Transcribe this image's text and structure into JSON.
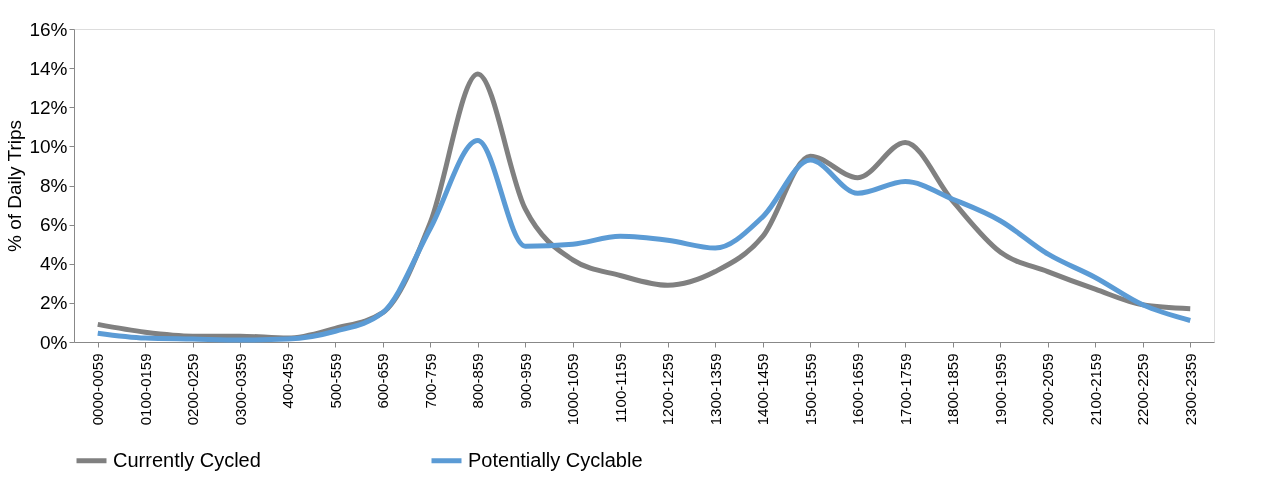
{
  "chart_data": {
    "type": "line",
    "ylabel": "% of Daily Trips",
    "categories": [
      "0000-0059",
      "0100-0159",
      "0200-0259",
      "0300-0359",
      "400-459",
      "500-559",
      "600-659",
      "700-759",
      "800-859",
      "900-959",
      "1000-1059",
      "1100-1159",
      "1200-1259",
      "1300-1359",
      "1400-1459",
      "1500-1559",
      "1600-1659",
      "1700-1759",
      "1800-1859",
      "1900-1959",
      "2000-2059",
      "2100-2159",
      "2200-2259",
      "2300-2359"
    ],
    "series": [
      {
        "name": "Currently Cycled",
        "color": "#808080",
        "values": [
          0.9,
          0.5,
          0.3,
          0.3,
          0.2,
          0.7,
          1.5,
          6.1,
          13.7,
          6.8,
          4.2,
          3.4,
          2.9,
          3.6,
          5.4,
          9.5,
          8.4,
          10.2,
          7.2,
          4.6,
          3.6,
          2.7,
          1.9,
          1.7
        ]
      },
      {
        "name": "Potentially Cyclable",
        "color": "#5b9bd5",
        "values": [
          0.45,
          0.2,
          0.15,
          0.1,
          0.15,
          0.55,
          1.5,
          5.8,
          10.3,
          4.9,
          5.0,
          5.4,
          5.2,
          4.8,
          6.4,
          9.3,
          7.6,
          8.2,
          7.3,
          6.2,
          4.5,
          3.3,
          1.9,
          1.1
        ]
      }
    ],
    "ylim": [
      0,
      16
    ],
    "yticks": [
      {
        "value": 0,
        "label": "0%"
      },
      {
        "value": 2,
        "label": "2%"
      },
      {
        "value": 4,
        "label": "4%"
      },
      {
        "value": 6,
        "label": "6%"
      },
      {
        "value": 8,
        "label": "8%"
      },
      {
        "value": 10,
        "label": "10%"
      },
      {
        "value": 12,
        "label": "12%"
      },
      {
        "value": 14,
        "label": "14%"
      },
      {
        "value": 16,
        "label": "16%"
      }
    ],
    "grid": false,
    "legend": "bottom",
    "marker": "none",
    "line_style": "solid"
  }
}
